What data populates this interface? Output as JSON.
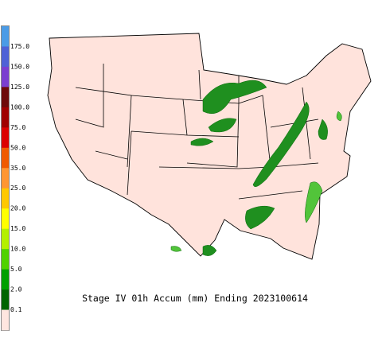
{
  "legend": {
    "labels": [
      "175.0",
      "150.0",
      "125.0",
      "100.0",
      "75.0",
      "50.0",
      "35.0",
      "25.0",
      "20.0",
      "15.0",
      "10.0",
      "5.0",
      "2.0",
      "0.1"
    ],
    "colors": [
      "#4b9be6",
      "#4f62d6",
      "#7b3fd0",
      "#6e0a0a",
      "#a00000",
      "#dc0000",
      "#f05a00",
      "#ff9632",
      "#ffc800",
      "#ffff00",
      "#b4f000",
      "#50d200",
      "#00a000",
      "#006400",
      "#ffe6e0"
    ]
  },
  "caption": "Stage IV 01h Accum (mm) Ending 2023100614"
}
